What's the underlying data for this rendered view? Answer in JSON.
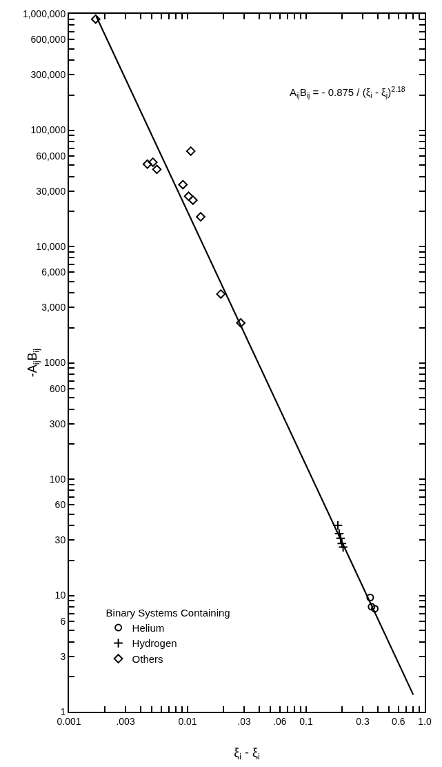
{
  "chart_data": {
    "type": "scatter",
    "xlabel": "ξ$_{i}$ - ξ$_{i}$",
    "ylabel": "-A$_{ij}$B$_{ij}$",
    "legend_title": "Binary Systems Containing",
    "log": "xy",
    "grid": false,
    "legend": "bottom left",
    "annotations": [
      "A$_{ij}$B$_{ij}$ = - 0.875 / (ξ$_{i}$ - ξ$_{j}$)$^{2.18}$"
    ],
    "xlim": [
      0.001,
      1
    ],
    "ylim": [
      1,
      1000000
    ],
    "xticks": [
      {
        "value": 0.001,
        "label": "0.001"
      },
      {
        "value": 0.002,
        "label": null
      },
      {
        "value": 0.003,
        "label": ".003"
      },
      {
        "value": 0.004,
        "label": null
      },
      {
        "value": 0.005,
        "label": null
      },
      {
        "value": 0.006,
        "label": null
      },
      {
        "value": 0.007,
        "label": null
      },
      {
        "value": 0.008,
        "label": null
      },
      {
        "value": 0.009,
        "label": null
      },
      {
        "value": 0.01,
        "label": "0.01"
      },
      {
        "value": 0.02,
        "label": null
      },
      {
        "value": 0.03,
        "label": ".03"
      },
      {
        "value": 0.04,
        "label": null
      },
      {
        "value": 0.05,
        "label": null
      },
      {
        "value": 0.06,
        "label": ".06"
      },
      {
        "value": 0.07,
        "label": null
      },
      {
        "value": 0.08,
        "label": null
      },
      {
        "value": 0.09,
        "label": null
      },
      {
        "value": 0.1,
        "label": "0.1"
      },
      {
        "value": 0.2,
        "label": null
      },
      {
        "value": 0.3,
        "label": "0.3"
      },
      {
        "value": 0.4,
        "label": null
      },
      {
        "value": 0.5,
        "label": null
      },
      {
        "value": 0.6,
        "label": "0.6"
      },
      {
        "value": 0.7,
        "label": null
      },
      {
        "value": 0.8,
        "label": null
      },
      {
        "value": 0.9,
        "label": null
      },
      {
        "value": 1,
        "label": "1.0"
      }
    ],
    "yticks": [
      {
        "value": 1,
        "label": "1"
      },
      {
        "value": 2,
        "label": null
      },
      {
        "value": 3,
        "label": "3"
      },
      {
        "value": 4,
        "label": null
      },
      {
        "value": 5,
        "label": null
      },
      {
        "value": 6,
        "label": "6"
      },
      {
        "value": 7,
        "label": null
      },
      {
        "value": 8,
        "label": null
      },
      {
        "value": 9,
        "label": null
      },
      {
        "value": 10,
        "label": "10"
      },
      {
        "value": 20,
        "label": null
      },
      {
        "value": 30,
        "label": "30"
      },
      {
        "value": 40,
        "label": null
      },
      {
        "value": 50,
        "label": null
      },
      {
        "value": 60,
        "label": "60"
      },
      {
        "value": 70,
        "label": null
      },
      {
        "value": 80,
        "label": null
      },
      {
        "value": 90,
        "label": null
      },
      {
        "value": 100,
        "label": "100"
      },
      {
        "value": 200,
        "label": null
      },
      {
        "value": 300,
        "label": "300"
      },
      {
        "value": 400,
        "label": null
      },
      {
        "value": 500,
        "label": null
      },
      {
        "value": 600,
        "label": "600"
      },
      {
        "value": 700,
        "label": null
      },
      {
        "value": 800,
        "label": null
      },
      {
        "value": 900,
        "label": null
      },
      {
        "value": 1000,
        "label": "1000"
      },
      {
        "value": 2000,
        "label": null
      },
      {
        "value": 3000,
        "label": "3,000"
      },
      {
        "value": 4000,
        "label": null
      },
      {
        "value": 5000,
        "label": null
      },
      {
        "value": 6000,
        "label": "6,000"
      },
      {
        "value": 7000,
        "label": null
      },
      {
        "value": 8000,
        "label": null
      },
      {
        "value": 9000,
        "label": null
      },
      {
        "value": 10000,
        "label": "10,000"
      },
      {
        "value": 20000,
        "label": null
      },
      {
        "value": 30000,
        "label": "30,000"
      },
      {
        "value": 40000,
        "label": null
      },
      {
        "value": 50000,
        "label": null
      },
      {
        "value": 60000,
        "label": "60,000"
      },
      {
        "value": 70000,
        "label": null
      },
      {
        "value": 80000,
        "label": null
      },
      {
        "value": 90000,
        "label": null
      },
      {
        "value": 100000,
        "label": "100,000"
      },
      {
        "value": 200000,
        "label": null
      },
      {
        "value": 300000,
        "label": "300,000"
      },
      {
        "value": 400000,
        "label": null
      },
      {
        "value": 500000,
        "label": null
      },
      {
        "value": 600000,
        "label": "600,000"
      },
      {
        "value": 700000,
        "label": null
      },
      {
        "value": 800000,
        "label": null
      },
      {
        "value": 900000,
        "label": null
      },
      {
        "value": 1000000,
        "label": "1,000,000"
      }
    ],
    "series": [
      {
        "type": "line",
        "color": "#000000",
        "line_style": "solid",
        "marker": "none",
        "x": [
          0.0017,
          0.8
        ],
        "values": [
          950000,
          1.4
        ]
      },
      {
        "name": "Helium",
        "color": "#000000",
        "marker": "circle",
        "x": [
          0.347,
          0.356,
          0.379
        ],
        "values": [
          9.6,
          8.0,
          7.7
        ]
      },
      {
        "name": "Hydrogen",
        "color": "#000000",
        "marker": "cross",
        "x": [
          0.185,
          0.19,
          0.195,
          0.2,
          0.205
        ],
        "values": [
          40,
          34,
          31,
          28,
          26
        ]
      },
      {
        "name": "Others",
        "color": "#000000",
        "marker": "diamond",
        "x": [
          0.00168,
          0.00458,
          0.0051,
          0.00551,
          0.01065,
          0.00914,
          0.0102,
          0.0111,
          0.0129,
          0.0191,
          0.0281
        ],
        "values": [
          900000,
          51000,
          53000,
          46000,
          66000,
          34000,
          27000,
          25000,
          18000,
          3900,
          2200
        ]
      }
    ]
  }
}
